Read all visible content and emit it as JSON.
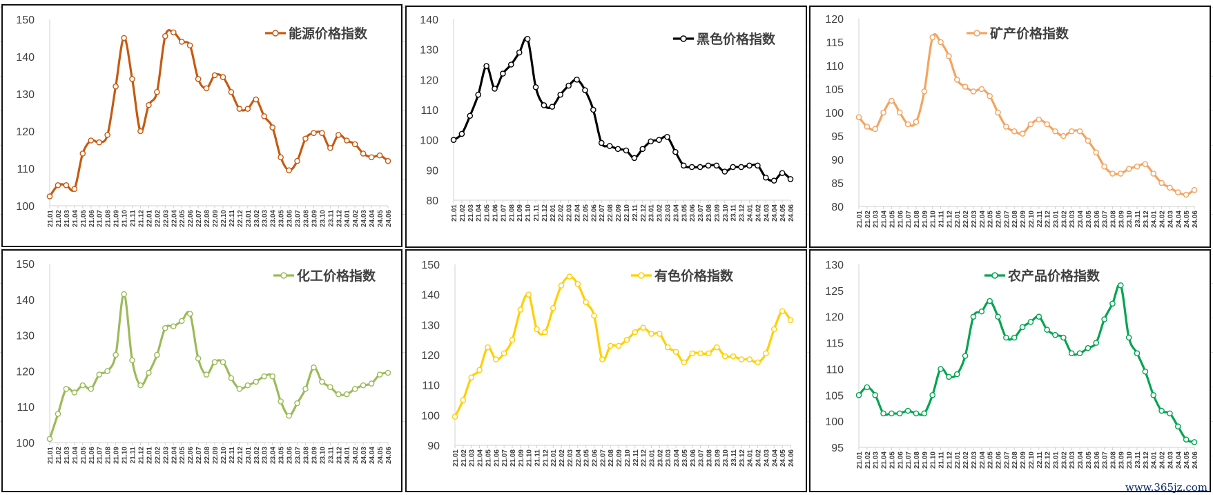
{
  "watermark": "www.365jz.com",
  "x_labels": [
    "21.01",
    "21.02",
    "21.03",
    "21.04",
    "21.05",
    "21.06",
    "21.07",
    "21.08",
    "21.09",
    "21.10",
    "21.11",
    "21.12",
    "22.01",
    "22.02",
    "22.03",
    "22.04",
    "22.05",
    "22.06",
    "22.07",
    "22.08",
    "22.09",
    "22.10",
    "22.11",
    "22.12",
    "23.01",
    "23.02",
    "23.03",
    "23.04",
    "23.05",
    "23.06",
    "23.07",
    "23.08",
    "23.09",
    "23.10",
    "23.11",
    "23.12",
    "24.01",
    "24.02",
    "24.03",
    "24.04",
    "24.05",
    "24.06"
  ],
  "chart_data": [
    {
      "type": "line",
      "title": "能源价格指数",
      "legend": "能源价格指数",
      "color": "#C55A11",
      "ylim": [
        100,
        150
      ],
      "yticks": [
        100,
        110,
        120,
        130,
        140,
        150
      ],
      "values": [
        102.5,
        105.5,
        105.5,
        104.5,
        114,
        117.5,
        117,
        119,
        132,
        145,
        134,
        120,
        127,
        130.5,
        145.5,
        146.5,
        144,
        143,
        134,
        131.5,
        135,
        134.5,
        130.5,
        126,
        126,
        128.5,
        124,
        121,
        113,
        109.5,
        112,
        118,
        119.5,
        119.5,
        115.5,
        119,
        117.5,
        116.5,
        114,
        113,
        113.5,
        112
      ]
    },
    {
      "type": "line",
      "title": "黑色价格指数",
      "legend": "黑色价格指数",
      "color": "#000000",
      "ylim": [
        80,
        140
      ],
      "yticks": [
        80,
        90,
        100,
        110,
        120,
        130,
        140
      ],
      "values": [
        100,
        102,
        108,
        115,
        124.5,
        117,
        122,
        125,
        129,
        133.5,
        117.5,
        111.5,
        111,
        115,
        118,
        120,
        116.5,
        110,
        99,
        98,
        97,
        96.5,
        94,
        97,
        99.5,
        100,
        101,
        96,
        91.5,
        91,
        91,
        91.5,
        91.5,
        89.5,
        91,
        91,
        91.5,
        91.5,
        87.5,
        86.5,
        89,
        87
      ]
    },
    {
      "type": "line",
      "title": "矿产价格指数",
      "legend": "矿产价格指数",
      "color": "#F4A460",
      "ylim": [
        80,
        120
      ],
      "yticks": [
        80,
        85,
        90,
        95,
        100,
        105,
        110,
        115,
        120
      ],
      "values": [
        99,
        97,
        96.5,
        100,
        102.5,
        100,
        97.5,
        98,
        104.5,
        116,
        115,
        112,
        107,
        105.5,
        104.5,
        105,
        103.5,
        100,
        97,
        96,
        95.5,
        97.5,
        98.5,
        97.5,
        96,
        95,
        96,
        96,
        94,
        91.5,
        88.5,
        87,
        87,
        88,
        88.5,
        89,
        87,
        85,
        84,
        83,
        82.5,
        83.5
      ]
    },
    {
      "type": "line",
      "title": "化工价格指数",
      "legend": "化工价格指数",
      "color": "#9BBB59",
      "ylim": [
        100,
        150
      ],
      "yticks": [
        100,
        110,
        120,
        130,
        140,
        150
      ],
      "values": [
        101,
        108,
        115,
        114,
        116,
        115,
        119,
        120,
        124.5,
        141.5,
        123,
        116,
        119.5,
        124.5,
        132,
        132.5,
        134,
        136,
        123.5,
        119,
        122.5,
        122.5,
        118,
        115,
        116,
        117,
        118.5,
        118.5,
        111.5,
        107.5,
        111,
        115,
        121,
        117,
        115.5,
        113.5,
        113.5,
        115,
        116,
        116.5,
        119,
        119.5
      ]
    },
    {
      "type": "line",
      "title": "有色价格指数",
      "legend": "有色价格指数",
      "color": "#FFD000",
      "ylim": [
        90,
        150
      ],
      "yticks": [
        90,
        100,
        110,
        120,
        130,
        140,
        150
      ],
      "values": [
        99.5,
        105,
        112.5,
        115,
        122.5,
        118.5,
        120.5,
        125,
        135,
        140,
        128.5,
        127.5,
        135.5,
        143,
        146,
        143.5,
        137.5,
        133,
        118.5,
        123,
        123,
        125,
        127.5,
        129,
        127,
        127,
        122.5,
        121,
        117.5,
        120.5,
        120.5,
        120.5,
        122.5,
        119.5,
        119.5,
        118.5,
        118.5,
        117.5,
        120.5,
        128.5,
        134.5,
        131.5
      ]
    },
    {
      "type": "line",
      "title": "农产品价格指数",
      "legend": "农产品价格指数",
      "color": "#00A550",
      "ylim": [
        95,
        130
      ],
      "yticks": [
        95,
        100,
        105,
        110,
        115,
        120,
        125,
        130
      ],
      "values": [
        105,
        106.5,
        105,
        101.5,
        101.5,
        101.5,
        102,
        101.5,
        101.5,
        105,
        110,
        108.5,
        109,
        112.5,
        120,
        121,
        123,
        120,
        116,
        116,
        118,
        119,
        120,
        117.5,
        116.5,
        116,
        113,
        113,
        114,
        115,
        119.5,
        122.5,
        126,
        116,
        113,
        109.5,
        105,
        102,
        101.5,
        99,
        96.5,
        96
      ]
    }
  ]
}
